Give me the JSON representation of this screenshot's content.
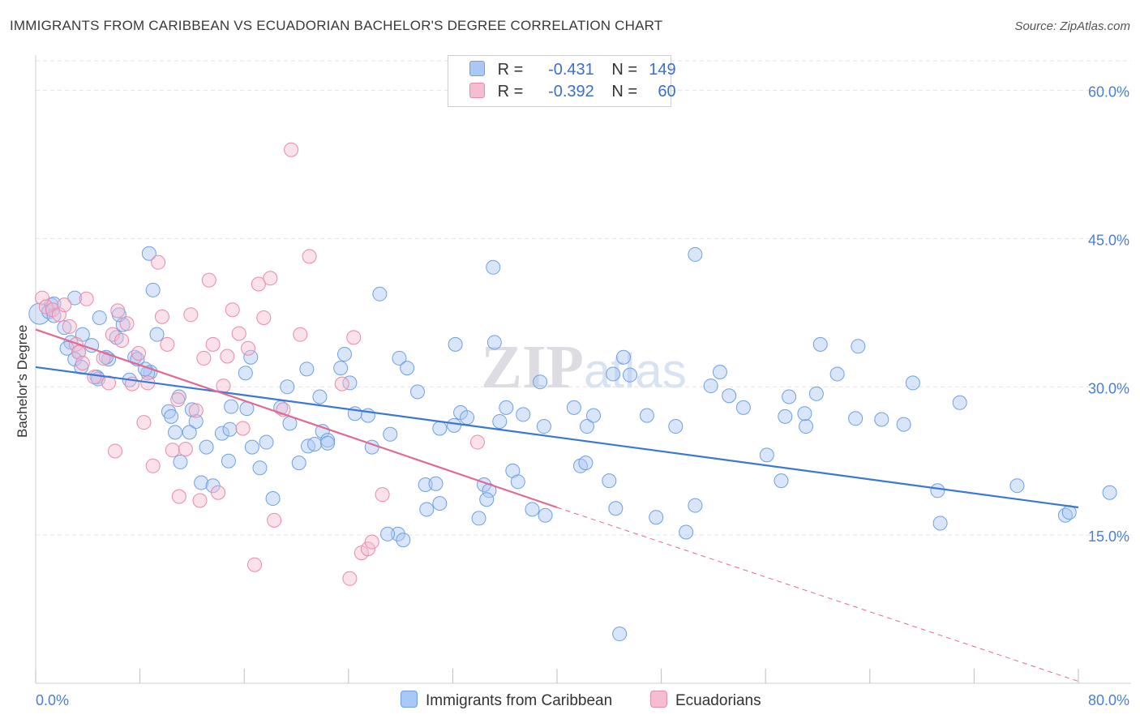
{
  "title": "IMMIGRANTS FROM CARIBBEAN VS ECUADORIAN BACHELOR'S DEGREE CORRELATION CHART",
  "source": "Source: ZipAtlas.com",
  "watermark": "ZIPatlas",
  "legend": {
    "r_label": "R =",
    "n_label": "N =",
    "rows": [
      {
        "name": "Immigrants from Caribbean",
        "r": "-0.431",
        "n": "149",
        "color": "#6f9fe6",
        "fill": "#aac8f5"
      },
      {
        "name": "Ecuadorians",
        "r": "-0.392",
        "n": "60",
        "color": "#e98aa8",
        "fill": "#f5bdd0"
      }
    ]
  },
  "chart_data": {
    "type": "scatter",
    "ylabel": "Bachelor's Degree",
    "xlim": [
      0,
      80
    ],
    "ylim": [
      0,
      63
    ],
    "x_tick_labels": [
      "0.0%",
      "80.0%"
    ],
    "y_ticks": [
      15,
      30,
      45,
      60
    ],
    "y_tick_labels": [
      "15.0%",
      "30.0%",
      "45.0%",
      "60.0%"
    ],
    "grid": true,
    "series": [
      {
        "name": "Immigrants from Caribbean",
        "color": "#3a78d6",
        "trend": {
          "x0": 0,
          "y0": 32.0,
          "x1": 80,
          "y1": 17.8
        },
        "points": [
          [
            0.3,
            37.4
          ],
          [
            1.2,
            38.3
          ],
          [
            1.0,
            37.6
          ],
          [
            1.4,
            38.4
          ],
          [
            1.4,
            37.2
          ],
          [
            2.2,
            36.0
          ],
          [
            2.7,
            34.5
          ],
          [
            3.3,
            33.5
          ],
          [
            3.0,
            32.8
          ],
          [
            3.6,
            35.3
          ],
          [
            4.3,
            34.2
          ],
          [
            4.7,
            31.0
          ],
          [
            5.6,
            32.8
          ],
          [
            4.9,
            37.0
          ],
          [
            6.2,
            35.0
          ],
          [
            6.7,
            36.3
          ],
          [
            6.4,
            37.3
          ],
          [
            5.4,
            33.0
          ],
          [
            2.4,
            33.9
          ],
          [
            3.5,
            32.0
          ],
          [
            4.8,
            30.8
          ],
          [
            7.2,
            30.7
          ],
          [
            8.8,
            31.5
          ],
          [
            9.0,
            39.8
          ],
          [
            8.6,
            31.4
          ],
          [
            7.6,
            33.0
          ],
          [
            8.4,
            31.8
          ],
          [
            7.8,
            32.8
          ],
          [
            8.7,
            43.5
          ],
          [
            9.3,
            35.3
          ],
          [
            10.2,
            27.5
          ],
          [
            10.7,
            25.4
          ],
          [
            11.1,
            22.4
          ],
          [
            11.0,
            29.0
          ],
          [
            10.4,
            27.0
          ],
          [
            12.3,
            26.5
          ],
          [
            12.0,
            27.7
          ],
          [
            11.8,
            25.4
          ],
          [
            13.1,
            23.9
          ],
          [
            12.7,
            20.3
          ],
          [
            13.6,
            20.0
          ],
          [
            14.3,
            25.3
          ],
          [
            14.8,
            22.5
          ],
          [
            14.9,
            25.7
          ],
          [
            15.0,
            28.0
          ],
          [
            16.1,
            31.4
          ],
          [
            16.2,
            27.8
          ],
          [
            16.6,
            23.9
          ],
          [
            17.2,
            21.8
          ],
          [
            16.5,
            33.0
          ],
          [
            17.7,
            24.4
          ],
          [
            18.2,
            18.7
          ],
          [
            18.8,
            27.9
          ],
          [
            19.5,
            26.3
          ],
          [
            19.3,
            30.0
          ],
          [
            20.2,
            22.3
          ],
          [
            20.8,
            31.8
          ],
          [
            20.9,
            24.0
          ],
          [
            21.4,
            24.2
          ],
          [
            22.0,
            25.5
          ],
          [
            22.4,
            24.6
          ],
          [
            21.8,
            29.0
          ],
          [
            22.4,
            24.3
          ],
          [
            23.4,
            31.9
          ],
          [
            23.7,
            33.3
          ],
          [
            24.1,
            30.4
          ],
          [
            24.5,
            27.3
          ],
          [
            25.5,
            27.1
          ],
          [
            25.8,
            23.9
          ],
          [
            26.4,
            39.4
          ],
          [
            27.2,
            25.2
          ],
          [
            27.9,
            32.9
          ],
          [
            27.8,
            15.1
          ],
          [
            27.0,
            15.1
          ],
          [
            28.2,
            14.5
          ],
          [
            28.5,
            31.9
          ],
          [
            29.3,
            29.5
          ],
          [
            29.9,
            20.1
          ],
          [
            30.0,
            17.6
          ],
          [
            30.7,
            20.2
          ],
          [
            31.0,
            18.2
          ],
          [
            31.0,
            25.8
          ],
          [
            32.1,
            26.1
          ],
          [
            32.2,
            34.3
          ],
          [
            32.6,
            27.4
          ],
          [
            33.1,
            26.9
          ],
          [
            34.0,
            16.7
          ],
          [
            34.4,
            20.1
          ],
          [
            34.8,
            19.5
          ],
          [
            34.6,
            18.6
          ],
          [
            35.2,
            34.5
          ],
          [
            35.6,
            26.5
          ],
          [
            36.1,
            27.9
          ],
          [
            36.6,
            21.5
          ],
          [
            37.0,
            20.4
          ],
          [
            37.4,
            27.2
          ],
          [
            38.1,
            17.6
          ],
          [
            38.7,
            30.5
          ],
          [
            39.0,
            26.0
          ],
          [
            39.1,
            17.0
          ],
          [
            41.3,
            27.9
          ],
          [
            41.8,
            22.0
          ],
          [
            42.2,
            22.3
          ],
          [
            42.3,
            26.0
          ],
          [
            42.8,
            27.1
          ],
          [
            44.0,
            20.5
          ],
          [
            44.5,
            17.7
          ],
          [
            44.3,
            31.3
          ],
          [
            45.1,
            33.0
          ],
          [
            45.6,
            31.2
          ],
          [
            46.9,
            27.1
          ],
          [
            47.6,
            16.8
          ],
          [
            49.1,
            26.0
          ],
          [
            49.9,
            15.3
          ],
          [
            50.6,
            18.0
          ],
          [
            50.6,
            43.4
          ],
          [
            51.8,
            30.1
          ],
          [
            52.5,
            31.5
          ],
          [
            53.2,
            29.1
          ],
          [
            54.3,
            27.9
          ],
          [
            56.1,
            23.1
          ],
          [
            57.2,
            20.5
          ],
          [
            57.5,
            27.0
          ],
          [
            57.8,
            29.0
          ],
          [
            59.1,
            26.0
          ],
          [
            59.0,
            27.3
          ],
          [
            59.9,
            29.3
          ],
          [
            60.2,
            34.3
          ],
          [
            61.5,
            31.3
          ],
          [
            62.9,
            26.8
          ],
          [
            63.1,
            34.1
          ],
          [
            64.9,
            26.7
          ],
          [
            66.6,
            26.2
          ],
          [
            67.3,
            30.4
          ],
          [
            69.2,
            19.5
          ],
          [
            69.4,
            16.2
          ],
          [
            70.9,
            28.4
          ],
          [
            75.3,
            20.0
          ],
          [
            79.0,
            17.0
          ],
          [
            79.3,
            17.3
          ],
          [
            82.4,
            19.3
          ],
          [
            35.1,
            42.1
          ],
          [
            44.8,
            5.0
          ],
          [
            3.0,
            39.0
          ]
        ]
      },
      {
        "name": "Ecuadorians",
        "color": "#e06a92",
        "trend": {
          "x0": 0,
          "y0": 35.8,
          "x1": 40,
          "y1": 17.8
        },
        "trend_ext": {
          "x0": 40,
          "y0": 17.8,
          "x1": 80,
          "y1": 0.2
        },
        "points": [
          [
            0.5,
            39.0
          ],
          [
            0.8,
            38.1
          ],
          [
            1.3,
            37.8
          ],
          [
            1.8,
            37.3
          ],
          [
            2.2,
            38.3
          ],
          [
            2.6,
            36.1
          ],
          [
            3.1,
            34.3
          ],
          [
            3.3,
            33.5
          ],
          [
            3.6,
            32.4
          ],
          [
            3.9,
            38.9
          ],
          [
            4.5,
            31.0
          ],
          [
            5.2,
            32.9
          ],
          [
            5.6,
            30.4
          ],
          [
            5.9,
            35.3
          ],
          [
            6.1,
            23.5
          ],
          [
            6.3,
            37.7
          ],
          [
            6.6,
            34.7
          ],
          [
            7.0,
            36.4
          ],
          [
            7.4,
            30.3
          ],
          [
            7.9,
            33.4
          ],
          [
            8.3,
            26.4
          ],
          [
            8.6,
            30.4
          ],
          [
            9.0,
            22.0
          ],
          [
            9.4,
            42.6
          ],
          [
            9.7,
            37.1
          ],
          [
            10.1,
            34.3
          ],
          [
            10.5,
            23.6
          ],
          [
            10.9,
            28.7
          ],
          [
            11.0,
            18.9
          ],
          [
            11.5,
            23.7
          ],
          [
            11.9,
            37.3
          ],
          [
            12.3,
            27.6
          ],
          [
            12.6,
            18.5
          ],
          [
            12.9,
            32.9
          ],
          [
            13.3,
            40.8
          ],
          [
            13.6,
            34.3
          ],
          [
            14.0,
            19.3
          ],
          [
            14.4,
            30.1
          ],
          [
            14.7,
            33.1
          ],
          [
            15.1,
            37.8
          ],
          [
            15.6,
            35.4
          ],
          [
            15.9,
            25.8
          ],
          [
            16.3,
            33.9
          ],
          [
            16.8,
            12.0
          ],
          [
            17.1,
            40.4
          ],
          [
            17.5,
            37.0
          ],
          [
            18.0,
            41.0
          ],
          [
            18.3,
            16.5
          ],
          [
            19.0,
            27.7
          ],
          [
            19.6,
            54.0
          ],
          [
            20.3,
            35.3
          ],
          [
            21.0,
            43.2
          ],
          [
            23.5,
            30.3
          ],
          [
            24.1,
            10.6
          ],
          [
            24.4,
            35.0
          ],
          [
            25.0,
            13.2
          ],
          [
            25.5,
            13.6
          ],
          [
            25.8,
            14.3
          ],
          [
            26.6,
            19.1
          ],
          [
            33.9,
            24.4
          ]
        ]
      }
    ]
  }
}
